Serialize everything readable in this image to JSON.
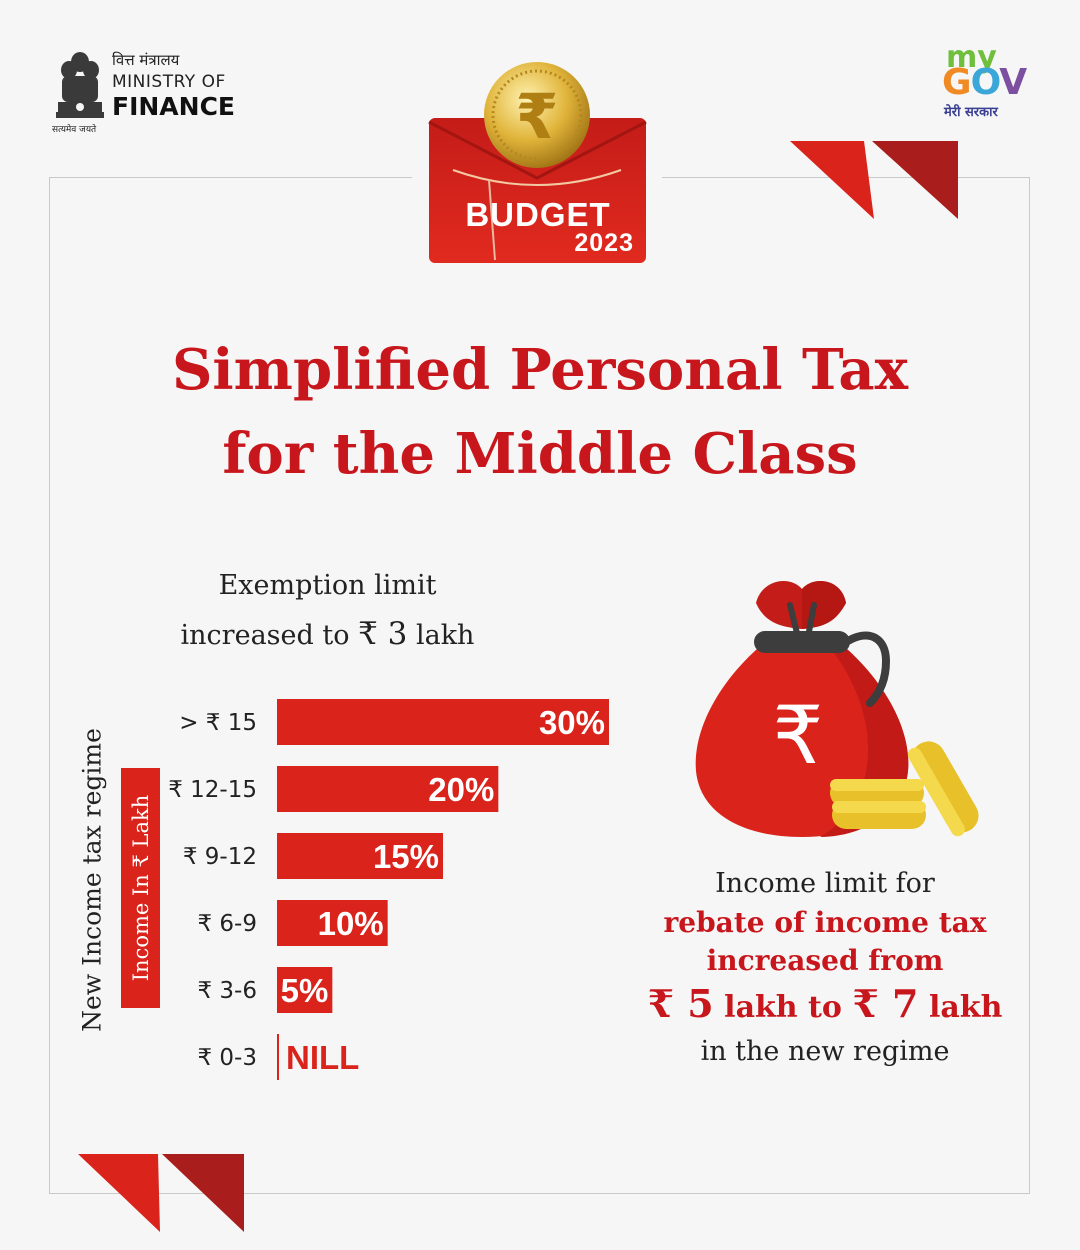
{
  "header": {
    "ministry_hindi": "वित्त मंत्रालय",
    "ministry_line1": "MINISTRY OF",
    "ministry_line2": "FINANCE",
    "emblem_motto": "सत्यमेव जयते",
    "mygov_my": "my",
    "mygov_gov": [
      "G",
      "O",
      "V"
    ],
    "mygov_tagline": "मेरी सरकार"
  },
  "badge": {
    "word": "BUDGET",
    "year": "2023",
    "coin_symbol": "₹",
    "bag_symbol": "₹"
  },
  "title_lines": [
    "Simplified Personal Tax",
    "for the Middle Class"
  ],
  "exemption": {
    "line1": "Exemption limit",
    "line2_prefix": "increased to ",
    "amount": "₹ 3",
    "line2_suffix": " lakh"
  },
  "side_labels": {
    "regime": "New Income tax regime",
    "unit": "Income In ₹ Lakh"
  },
  "chart_data": {
    "type": "bar",
    "orientation": "horizontal",
    "categories": [
      "> ₹ 15",
      "₹ 12-15",
      "₹ 9-12",
      "₹ 6-9",
      "₹ 3-6",
      "₹ 0-3"
    ],
    "values": [
      30,
      20,
      15,
      10,
      5,
      0
    ],
    "data_labels": [
      "30%",
      "20%",
      "15%",
      "10%",
      "5%",
      "NILL"
    ],
    "title": "",
    "xlabel": "",
    "ylabel": "Income In ₹ Lakh",
    "xlim": [
      0,
      30
    ],
    "grid": false
  },
  "rebate": {
    "line1": "Income limit for",
    "line2": "rebate of income tax",
    "line3": "increased from",
    "from_amount": "₹ 5",
    "mid": " lakh to ",
    "to_amount": "₹ 7",
    "end": " lakh",
    "line5": "in the new regime"
  },
  "colors": {
    "accent_red": "#c8161d",
    "bar_red": "#d9231b",
    "dark_red": "#a91e1c",
    "coin_gold": "#e0b43a"
  }
}
